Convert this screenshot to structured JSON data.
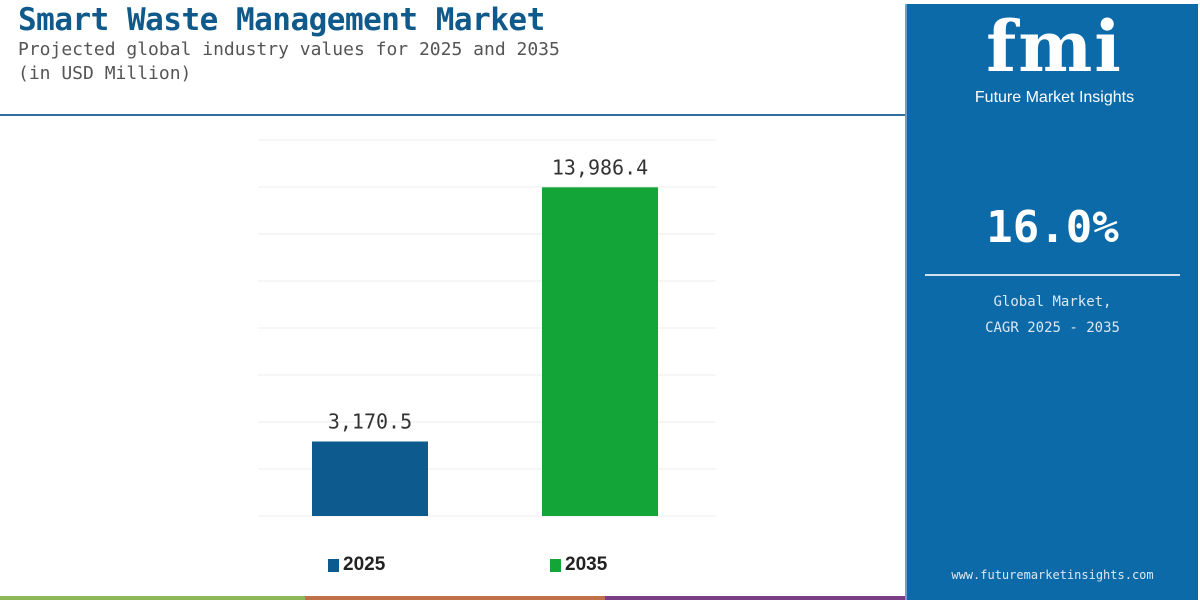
{
  "header": {
    "title": "Smart Waste Management Market",
    "subtitle": "Projected global industry values for 2025 and 2035",
    "unit": "(in USD Million)"
  },
  "panel": {
    "logo_text": "fmi",
    "logo_caption": "Future Market Insights",
    "cagr": "16.0%",
    "cagr_label_1": "Global Market,",
    "cagr_label_2": "CAGR 2025 - 2035",
    "url": "www.futuremarketinsights.com",
    "bg_color": "#0d6aa8"
  },
  "chart_data": {
    "type": "bar",
    "categories": [
      "2025",
      "2035"
    ],
    "values": [
      3170.5,
      13986.4
    ],
    "data_labels": [
      "3,170.5",
      "13,986.4"
    ],
    "colors": [
      "#0d5a8e",
      "#13a538"
    ],
    "legend": [
      "2025",
      "2035"
    ],
    "legend_placement": "bottom",
    "ylim": [
      0,
      16000
    ],
    "grid": true,
    "title": "",
    "xlabel": "",
    "ylabel": ""
  }
}
